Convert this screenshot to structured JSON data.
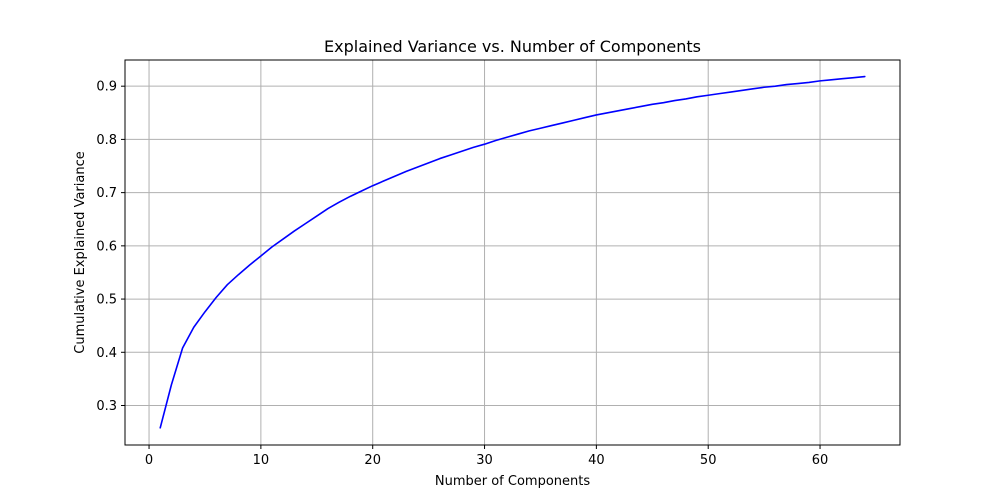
{
  "chart_data": {
    "type": "line",
    "title": "Explained Variance vs. Number of Components",
    "xlabel": "Number of Components",
    "ylabel": "Cumulative Explained Variance",
    "xlim": [
      -2.15,
      67.15
    ],
    "ylim": [
      0.2258,
      0.9492
    ],
    "xticks": [
      0,
      10,
      20,
      30,
      40,
      50,
      60
    ],
    "yticks": [
      0.3,
      0.4,
      0.5,
      0.6,
      0.7,
      0.8,
      0.9
    ],
    "grid": true,
    "line_color": "#0000ff",
    "series": [
      {
        "x": [
          1,
          2,
          3,
          4,
          5,
          6,
          7,
          8,
          9,
          10,
          11,
          12,
          13,
          14,
          15,
          16,
          17,
          18,
          19,
          20,
          21,
          22,
          23,
          24,
          25,
          26,
          27,
          28,
          29,
          30,
          31,
          32,
          33,
          34,
          35,
          36,
          37,
          38,
          39,
          40,
          41,
          42,
          43,
          44,
          45,
          46,
          47,
          48,
          49,
          50,
          51,
          52,
          53,
          54,
          55,
          56,
          57,
          58,
          59,
          60,
          61,
          62,
          63,
          64
        ],
        "values": [
          0.258,
          0.339,
          0.408,
          0.447,
          0.476,
          0.503,
          0.527,
          0.546,
          0.564,
          0.581,
          0.598,
          0.613,
          0.628,
          0.642,
          0.656,
          0.67,
          0.682,
          0.693,
          0.703,
          0.713,
          0.722,
          0.731,
          0.74,
          0.748,
          0.756,
          0.764,
          0.771,
          0.778,
          0.785,
          0.791,
          0.798,
          0.804,
          0.81,
          0.816,
          0.821,
          0.826,
          0.831,
          0.836,
          0.841,
          0.846,
          0.85,
          0.854,
          0.858,
          0.862,
          0.866,
          0.869,
          0.873,
          0.876,
          0.88,
          0.883,
          0.886,
          0.889,
          0.892,
          0.895,
          0.898,
          0.9,
          0.903,
          0.905,
          0.907,
          0.91,
          0.912,
          0.914,
          0.916,
          0.918
        ]
      }
    ]
  }
}
